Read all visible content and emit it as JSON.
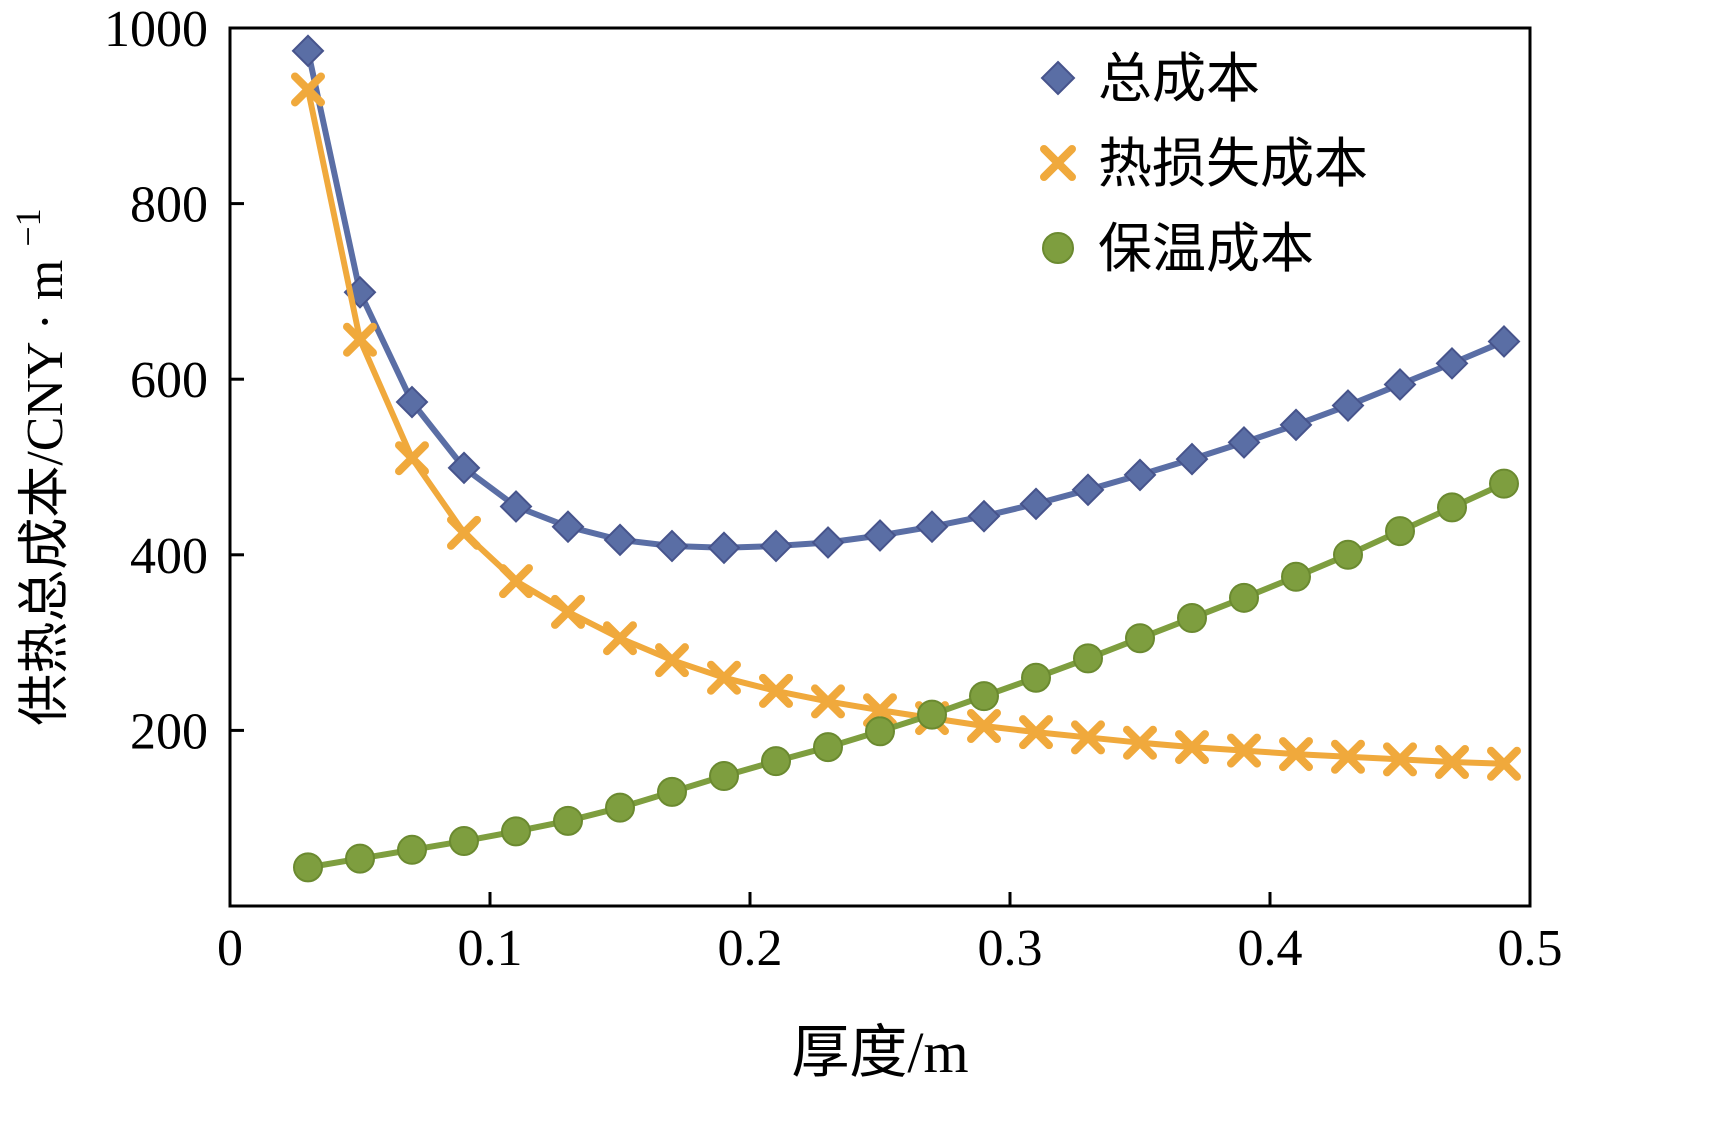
{
  "chart_data": {
    "type": "line",
    "title": "",
    "xlabel": "厚度/m",
    "ylabel": "供热总成本/CNY · m⁻¹",
    "ylabel_main": "供热总成本/CNY · m",
    "ylabel_sup": "−1",
    "xlim": [
      0,
      0.5
    ],
    "ylim": [
      0,
      1000
    ],
    "xticks": [
      0,
      0.1,
      0.2,
      0.3,
      0.4,
      0.5
    ],
    "yticks": [
      200,
      400,
      600,
      800,
      1000
    ],
    "grid": false,
    "legend_position": "top-right-inside",
    "x": [
      0.03,
      0.05,
      0.07,
      0.09,
      0.11,
      0.13,
      0.15,
      0.17,
      0.19,
      0.21,
      0.23,
      0.25,
      0.27,
      0.29,
      0.31,
      0.33,
      0.35,
      0.37,
      0.39,
      0.41,
      0.43,
      0.45,
      0.47,
      0.49
    ],
    "series": [
      {
        "id": "total-cost",
        "name": "总成本",
        "marker": "diamond",
        "color": "#5A6EA5",
        "edge": "#47548C",
        "values": [
          974,
          699,
          574,
          499,
          455,
          432,
          417,
          410,
          408,
          410,
          414,
          422,
          432,
          444,
          458,
          474,
          491,
          509,
          528,
          548,
          570,
          594,
          618,
          643
        ]
      },
      {
        "id": "heat-loss-cost",
        "name": "热损失成本",
        "marker": "x",
        "color": "#F0A93C",
        "edge": "#D8922A",
        "values": [
          930,
          645,
          510,
          425,
          370,
          335,
          305,
          280,
          260,
          245,
          233,
          223,
          214,
          205,
          198,
          192,
          186,
          181,
          177,
          173,
          170,
          167,
          164,
          162
        ]
      },
      {
        "id": "insulation-cost",
        "name": "保温成本",
        "marker": "circle",
        "color": "#7E9E3F",
        "edge": "#6B8A30",
        "values": [
          44,
          54,
          64,
          74,
          85,
          97,
          112,
          130,
          148,
          165,
          181,
          199,
          218,
          239,
          260,
          282,
          305,
          328,
          351,
          375,
          400,
          427,
          454,
          481
        ]
      }
    ]
  }
}
